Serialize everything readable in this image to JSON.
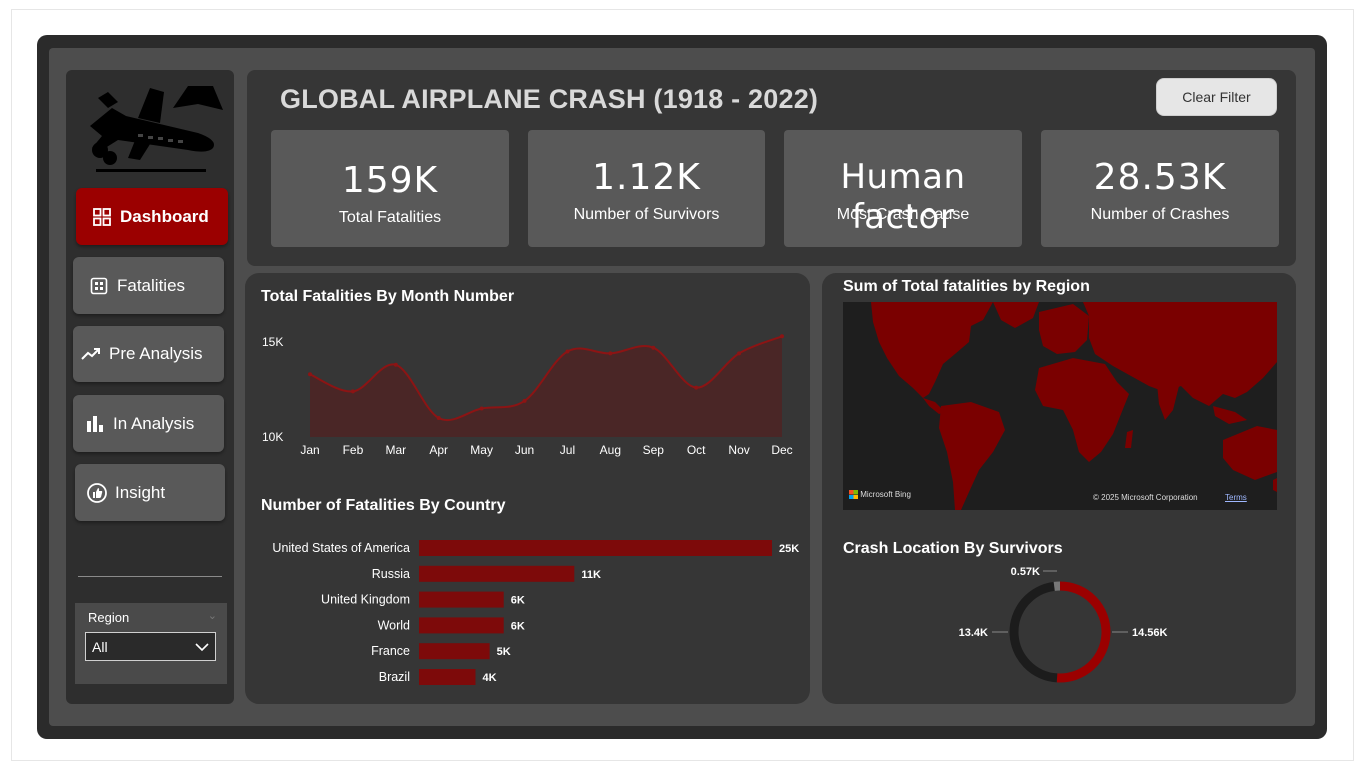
{
  "header": {
    "title": "GLOBAL AIRPLANE CRASH (1918 - 2022)",
    "clear_filter": "Clear Filter"
  },
  "kpis": [
    {
      "value": "159K",
      "label": "Total Fatalities"
    },
    {
      "value": "1.12K",
      "label": "Number of Survivors"
    },
    {
      "value": "Human factor",
      "label": "Most Crash Cause"
    },
    {
      "value": "28.53K",
      "label": "Number of Crashes"
    }
  ],
  "nav": {
    "dashboard": "Dashboard",
    "fatalities": "Fatalities",
    "pre_analysis": "Pre Analysis",
    "in_analysis": "In Analysis",
    "insight": "Insight"
  },
  "region_filter": {
    "label": "Region",
    "value": "All"
  },
  "map": {
    "title": "Sum of Total fatalities by Region",
    "provider": "Microsoft Bing",
    "copyright": "© 2025 Microsoft Corporation",
    "terms": "Terms"
  },
  "colors": {
    "accent": "#9b0000",
    "bar": "#7d0a0a",
    "area_line": "#8c1414",
    "area_fill": "#4a2626",
    "donut_dark": "#1c1c1c",
    "donut_gray": "#777777"
  },
  "chart_data": [
    {
      "type": "area",
      "title": "Total Fatalities By Month Number",
      "categories": [
        "Jan",
        "Feb",
        "Mar",
        "Apr",
        "May",
        "Jun",
        "Jul",
        "Aug",
        "Sep",
        "Oct",
        "Nov",
        "Dec"
      ],
      "values": [
        13300,
        12400,
        13800,
        11000,
        11500,
        11900,
        14500,
        14400,
        14700,
        12600,
        14400,
        15300
      ],
      "y_ticks": [
        "15K",
        "10K"
      ],
      "ylim": [
        10000,
        15000
      ]
    },
    {
      "type": "bar",
      "orientation": "horizontal",
      "title": "Number of Fatalities By Country",
      "categories": [
        "United States of America",
        "Russia",
        "United Kingdom",
        "World",
        "France",
        "Brazil"
      ],
      "values": [
        25000,
        11000,
        6000,
        6000,
        5000,
        4000
      ],
      "labels": [
        "25K",
        "11K",
        "6K",
        "6K",
        "5K",
        "4K"
      ]
    },
    {
      "type": "pie",
      "donut": true,
      "title": "Crash Location By Survivors",
      "slices": [
        {
          "value": 14.56,
          "label": "14.56K",
          "color": "#9b0000"
        },
        {
          "value": 13.4,
          "label": "13.4K",
          "color": "#1c1c1c"
        },
        {
          "value": 0.57,
          "label": "0.57K",
          "color": "#777777"
        }
      ]
    }
  ]
}
